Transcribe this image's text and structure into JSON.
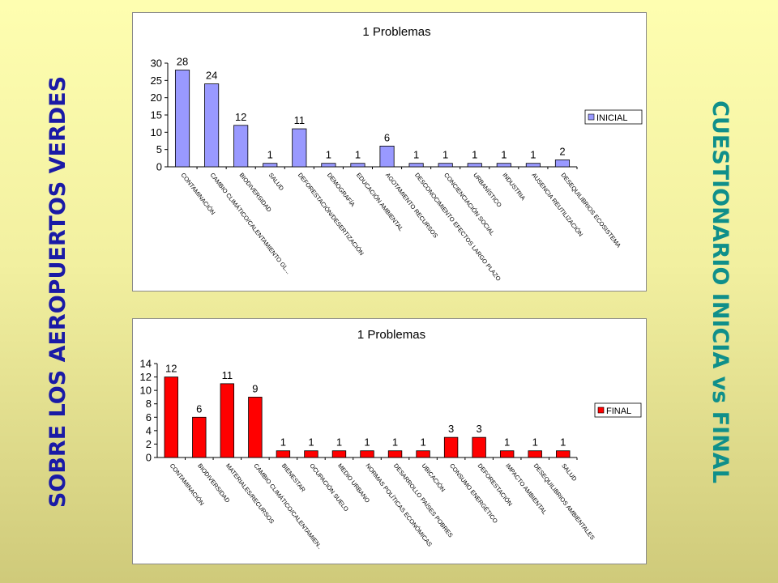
{
  "left_title": "SOBRE LOS AEROPUERTOS VERDES",
  "right_title": "CUESTIONARIO INICIA vs FINAL",
  "chart_data": [
    {
      "type": "bar",
      "title": "1 Problemas",
      "series": [
        {
          "name": "INICIAL",
          "color": "#9999ff",
          "values": [
            28,
            24,
            12,
            1,
            11,
            1,
            1,
            6,
            1,
            1,
            1,
            1,
            1,
            2
          ]
        }
      ],
      "categories": [
        "CONTAMINACIÓN",
        "CAMBIO CLIMÁTICO/CALENTAMIENTO GL...",
        "BIODIVERSIDAD",
        "SALUD",
        "DEFORESTACIÓN/DESERTIZACIÓN",
        "DEMOGRAFÍA",
        "EDUCACIÓN AMBIENTAL",
        "AGOTAMIENTO RECURSOS",
        "DESCONOCIMIENTO EFECTOS LARGO PLAZO",
        "CONCIENCIACIÓN SOCIAL",
        "URBANÍSTICO",
        "INDUSTRIA",
        "AUSENCIA REUTILIZACIÓN",
        "DESEQUILIBRIOS ECOSISTEMA"
      ],
      "ylim": [
        0,
        30
      ],
      "yticks": [
        0,
        5,
        10,
        15,
        20,
        25,
        30
      ],
      "legend": "right"
    },
    {
      "type": "bar",
      "title": "1 Problemas",
      "series": [
        {
          "name": "FINAL",
          "color": "#ff0000",
          "values": [
            12,
            6,
            11,
            9,
            1,
            1,
            1,
            1,
            1,
            1,
            3,
            3,
            1,
            1,
            1
          ]
        }
      ],
      "categories": [
        "CONTAMINACIÓN",
        "BIODIVERSIDAD",
        "MATERIALES/RECURSOS",
        "CAMBIO CLIMÁTICO/CALENTAMIEN..",
        "BIENESTAR",
        "OCUPACIÓN SUELO",
        "MEDIO URBANO",
        "NORMAS POLÍTICAS ECONÓMICAS",
        "DESARROLLO PAÍSES POBRES",
        "UBICACIÓN",
        "CONSUMO ENERGÉTICO",
        "DEFORESTACIÓN",
        "IMPACTO AMBIENTAL",
        "DESEQUILIBRIOS AMBIENTALES",
        "SALUD"
      ],
      "ylim": [
        0,
        14
      ],
      "yticks": [
        0,
        2,
        4,
        6,
        8,
        10,
        12,
        14
      ],
      "legend": "right"
    }
  ]
}
